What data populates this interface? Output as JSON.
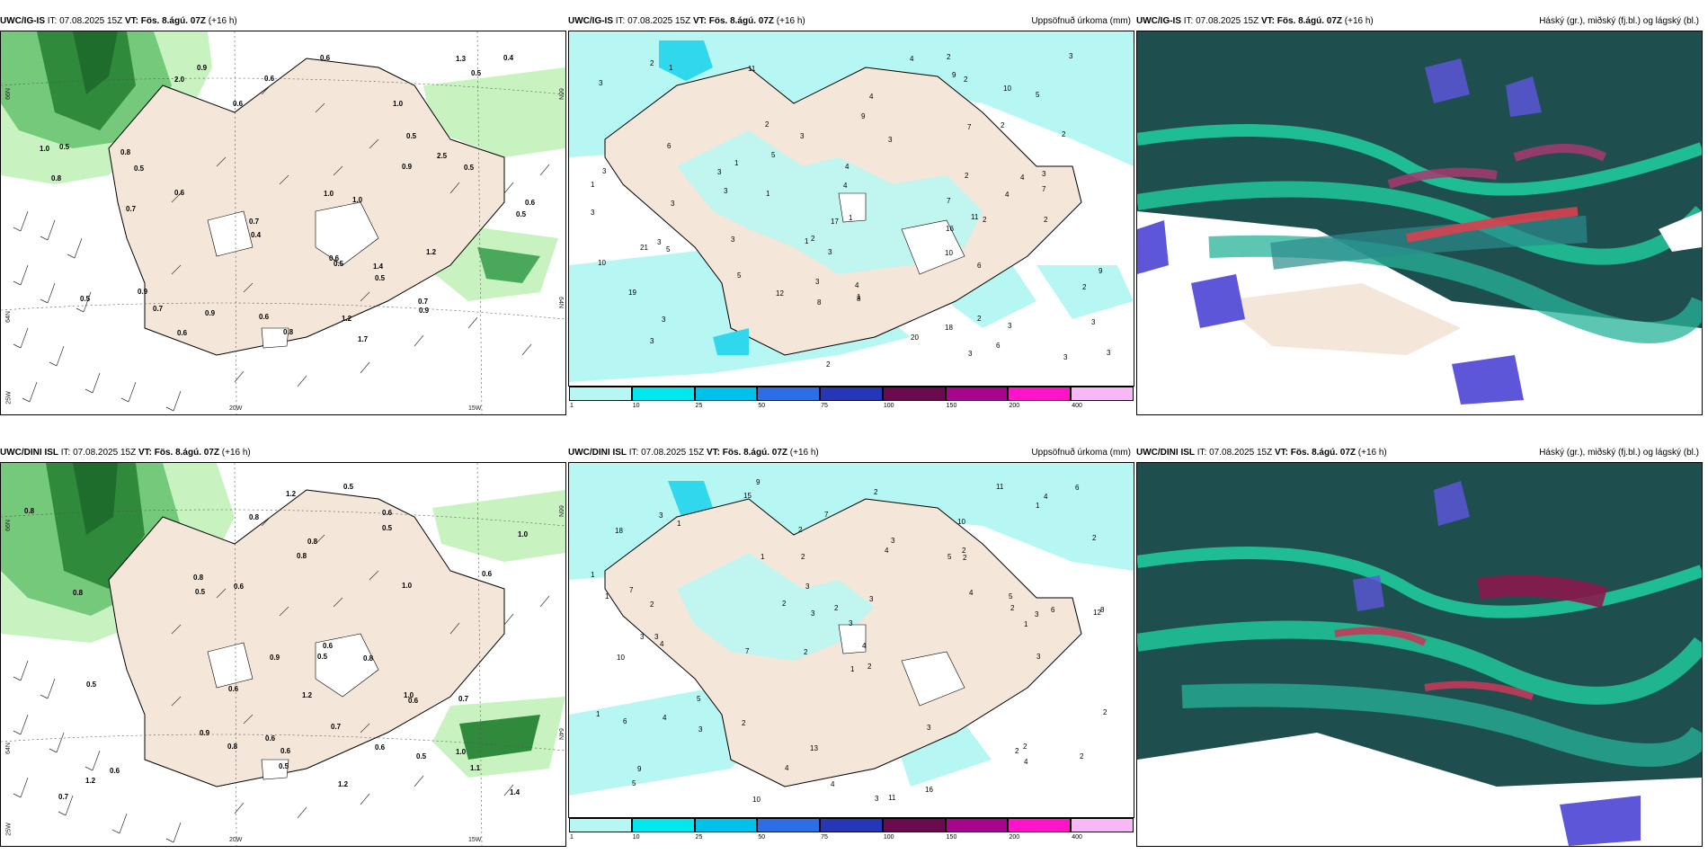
{
  "rows": [
    {
      "wind_panel": {
        "model": "UWC/IG-IS",
        "it": "IT: 07.08.2025 15Z",
        "vt": "VT: Fös. 8.ágú. 07Z",
        "lead": "(+16 h)"
      },
      "precip_panel": {
        "model": "UWC/IG-IS",
        "it": "IT: 07.08.2025 15Z",
        "vt": "VT: Fös. 8.ágú. 07Z",
        "lead": "(+16 h)",
        "title_right": "Uppsöfnuð úrkoma (mm)"
      },
      "cloud_panel": {
        "model": "UWC/IG-IS",
        "it": "IT: 07.08.2025 15Z",
        "vt": "VT: Fös. 8.ágú. 07Z",
        "lead": "(+16 h)",
        "title_right": "Háský (gr.), miðský (fj.bl.) og lágský (bl.)"
      },
      "axes": {
        "lat_top": "66N",
        "lat_bottom": "64N",
        "lon_left": "25W",
        "lon_mid": "20W",
        "lon_right": "15W"
      },
      "wind_values": [
        "1.7",
        "2.0",
        "0.9",
        "0.8",
        "2.5",
        "1.2",
        "0.5",
        "0.6",
        "0.4",
        "0.7",
        "0.5",
        "1.0",
        "0.7",
        "0.6",
        "0.9",
        "1.3",
        "0.8",
        "0.5",
        "1.2",
        "0.5",
        "0.7",
        "0.5",
        "0.6",
        "0.9",
        "1.0",
        "0.5",
        "0.7",
        "0.5",
        "0.8",
        "0.6",
        "0.5",
        "0.4",
        "1.0",
        "0.9",
        "0.9",
        "0.6",
        "0.6",
        "0.5",
        "0.6",
        "1.4",
        "0.6",
        "1.0"
      ],
      "precip_values": [
        "10",
        "9",
        "4",
        "2",
        "18",
        "2",
        "3",
        "4",
        "3",
        "6",
        "11",
        "16",
        "10",
        "6",
        "5",
        "3",
        "5",
        "21",
        "10",
        "3",
        "3",
        "3",
        "2",
        "9",
        "7",
        "3",
        "6",
        "7",
        "3",
        "5",
        "2",
        "4",
        "3",
        "2",
        "1",
        "3",
        "3",
        "1",
        "2",
        "3",
        "2",
        "3",
        "4",
        "2",
        "1",
        "2",
        "3",
        "1",
        "17",
        "1",
        "3",
        "3",
        "4",
        "3",
        "3",
        "3",
        "2",
        "2",
        "4",
        "1",
        "2",
        "8",
        "9",
        "20",
        "8",
        "19",
        "7",
        "12",
        "4",
        "1",
        "11",
        "3",
        "3",
        "2",
        "5"
      ]
    },
    {
      "wind_panel": {
        "model": "UWC/DINI ISL",
        "it": "IT: 07.08.2025 15Z",
        "vt": "VT: Fös. 8.ágú. 07Z",
        "lead": "(+16 h)"
      },
      "precip_panel": {
        "model": "UWC/DINI ISL",
        "it": "IT: 07.08.2025 15Z",
        "vt": "VT: Fös. 8.ágú. 07Z",
        "lead": "(+16 h)",
        "title_right": "Uppsöfnuð úrkoma (mm)"
      },
      "cloud_panel": {
        "model": "UWC/DINI ISL",
        "it": "IT: 07.08.2025 15Z",
        "vt": "VT: Fös. 8.ágú. 07Z",
        "lead": "(+16 h)",
        "title_right": "Háský (gr.), miðský (fj.bl.) og lágský (bl.)"
      },
      "axes": {
        "lat_top": "66N",
        "lat_bottom": "64N",
        "lon_left": "25W",
        "lon_mid": "20W",
        "lon_right": "15W"
      },
      "wind_values": [
        "1.2",
        "0.7",
        "0.6",
        "1.2",
        "0.8",
        "0.5",
        "1.0",
        "0.6",
        "0.5",
        "0.9",
        "1.4",
        "0.5",
        "0.8",
        "1.2",
        "0.6",
        "0.8",
        "1.0",
        "0.5",
        "0.9",
        "1.0",
        "0.8",
        "0.6",
        "0.5",
        "0.8",
        "0.6",
        "0.5",
        "0.6",
        "0.8",
        "0.6",
        "0.7",
        "1.1",
        "0.6",
        "0.8",
        "0.7",
        "0.5",
        "1.2",
        "0.6",
        "1.0",
        "0.8",
        "0.6"
      ],
      "precip_values": [
        "9",
        "10",
        "12",
        "2",
        "2",
        "3",
        "18",
        "5",
        "10",
        "4",
        "3",
        "5",
        "15",
        "7",
        "3",
        "11",
        "13",
        "11",
        "4",
        "5",
        "2",
        "3",
        "8",
        "6",
        "1",
        "7",
        "3",
        "2",
        "2",
        "6",
        "2",
        "3",
        "4",
        "2",
        "3",
        "2",
        "5",
        "4",
        "6",
        "7",
        "9",
        "10",
        "16",
        "3",
        "4",
        "2",
        "4",
        "2",
        "1",
        "4",
        "2",
        "1",
        "3",
        "1",
        "2",
        "3",
        "3",
        "2",
        "4",
        "2",
        "2",
        "3",
        "1",
        "2",
        "1",
        "1",
        "3",
        "4",
        "1",
        "2"
      ]
    }
  ],
  "colorbar": {
    "ticks": [
      "1",
      "10",
      "25",
      "50",
      "75",
      "100",
      "150",
      "200",
      "400"
    ],
    "colors": [
      "#b6f7f4",
      "#00e8ee",
      "#00c1ea",
      "#2c6ee8",
      "#2536b8",
      "#6b0a4e",
      "#a6068c",
      "#ff14c8",
      "#f8b8f5"
    ]
  },
  "colors": {
    "land": "#f4e6d8",
    "precip_light": "#b6f7f4",
    "precip_mid": "#2fd8ec",
    "cloud_high": "#1f4e4e",
    "cloud_mid": "#1fd1a0",
    "cloud_low": "#5d56d9",
    "wind_light": "#c8f2c0",
    "wind_dark": "#1f6d2c"
  }
}
